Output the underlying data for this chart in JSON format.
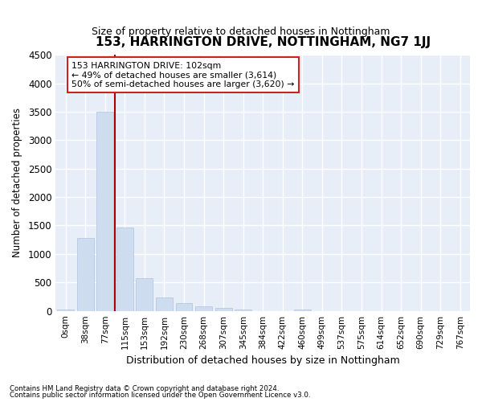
{
  "title": "153, HARRINGTON DRIVE, NOTTINGHAM, NG7 1JJ",
  "subtitle": "Size of property relative to detached houses in Nottingham",
  "xlabel": "Distribution of detached houses by size in Nottingham",
  "ylabel": "Number of detached properties",
  "bar_color": "#cddcee",
  "bar_edge_color": "#aec4de",
  "background_color": "#ffffff",
  "plot_bg_color": "#e8eef8",
  "grid_color": "#ffffff",
  "vline_color": "#aa0000",
  "vline_x": 2.5,
  "annotation_box_color": "#ffffff",
  "annotation_border_color": "#cc2222",
  "annotation_text_line1": "153 HARRINGTON DRIVE: 102sqm",
  "annotation_text_line2": "← 49% of detached houses are smaller (3,614)",
  "annotation_text_line3": "50% of semi-detached houses are larger (3,620) →",
  "categories": [
    "0sqm",
    "38sqm",
    "77sqm",
    "115sqm",
    "153sqm",
    "192sqm",
    "230sqm",
    "268sqm",
    "307sqm",
    "345sqm",
    "384sqm",
    "422sqm",
    "460sqm",
    "499sqm",
    "537sqm",
    "575sqm",
    "614sqm",
    "652sqm",
    "690sqm",
    "729sqm",
    "767sqm"
  ],
  "values": [
    30,
    1280,
    3500,
    1460,
    575,
    240,
    130,
    75,
    55,
    30,
    0,
    0,
    30,
    0,
    0,
    0,
    0,
    0,
    0,
    0,
    0
  ],
  "ylim": [
    0,
    4500
  ],
  "yticks": [
    0,
    500,
    1000,
    1500,
    2000,
    2500,
    3000,
    3500,
    4000,
    4500
  ],
  "footnote1": "Contains HM Land Registry data © Crown copyright and database right 2024.",
  "footnote2": "Contains public sector information licensed under the Open Government Licence v3.0."
}
